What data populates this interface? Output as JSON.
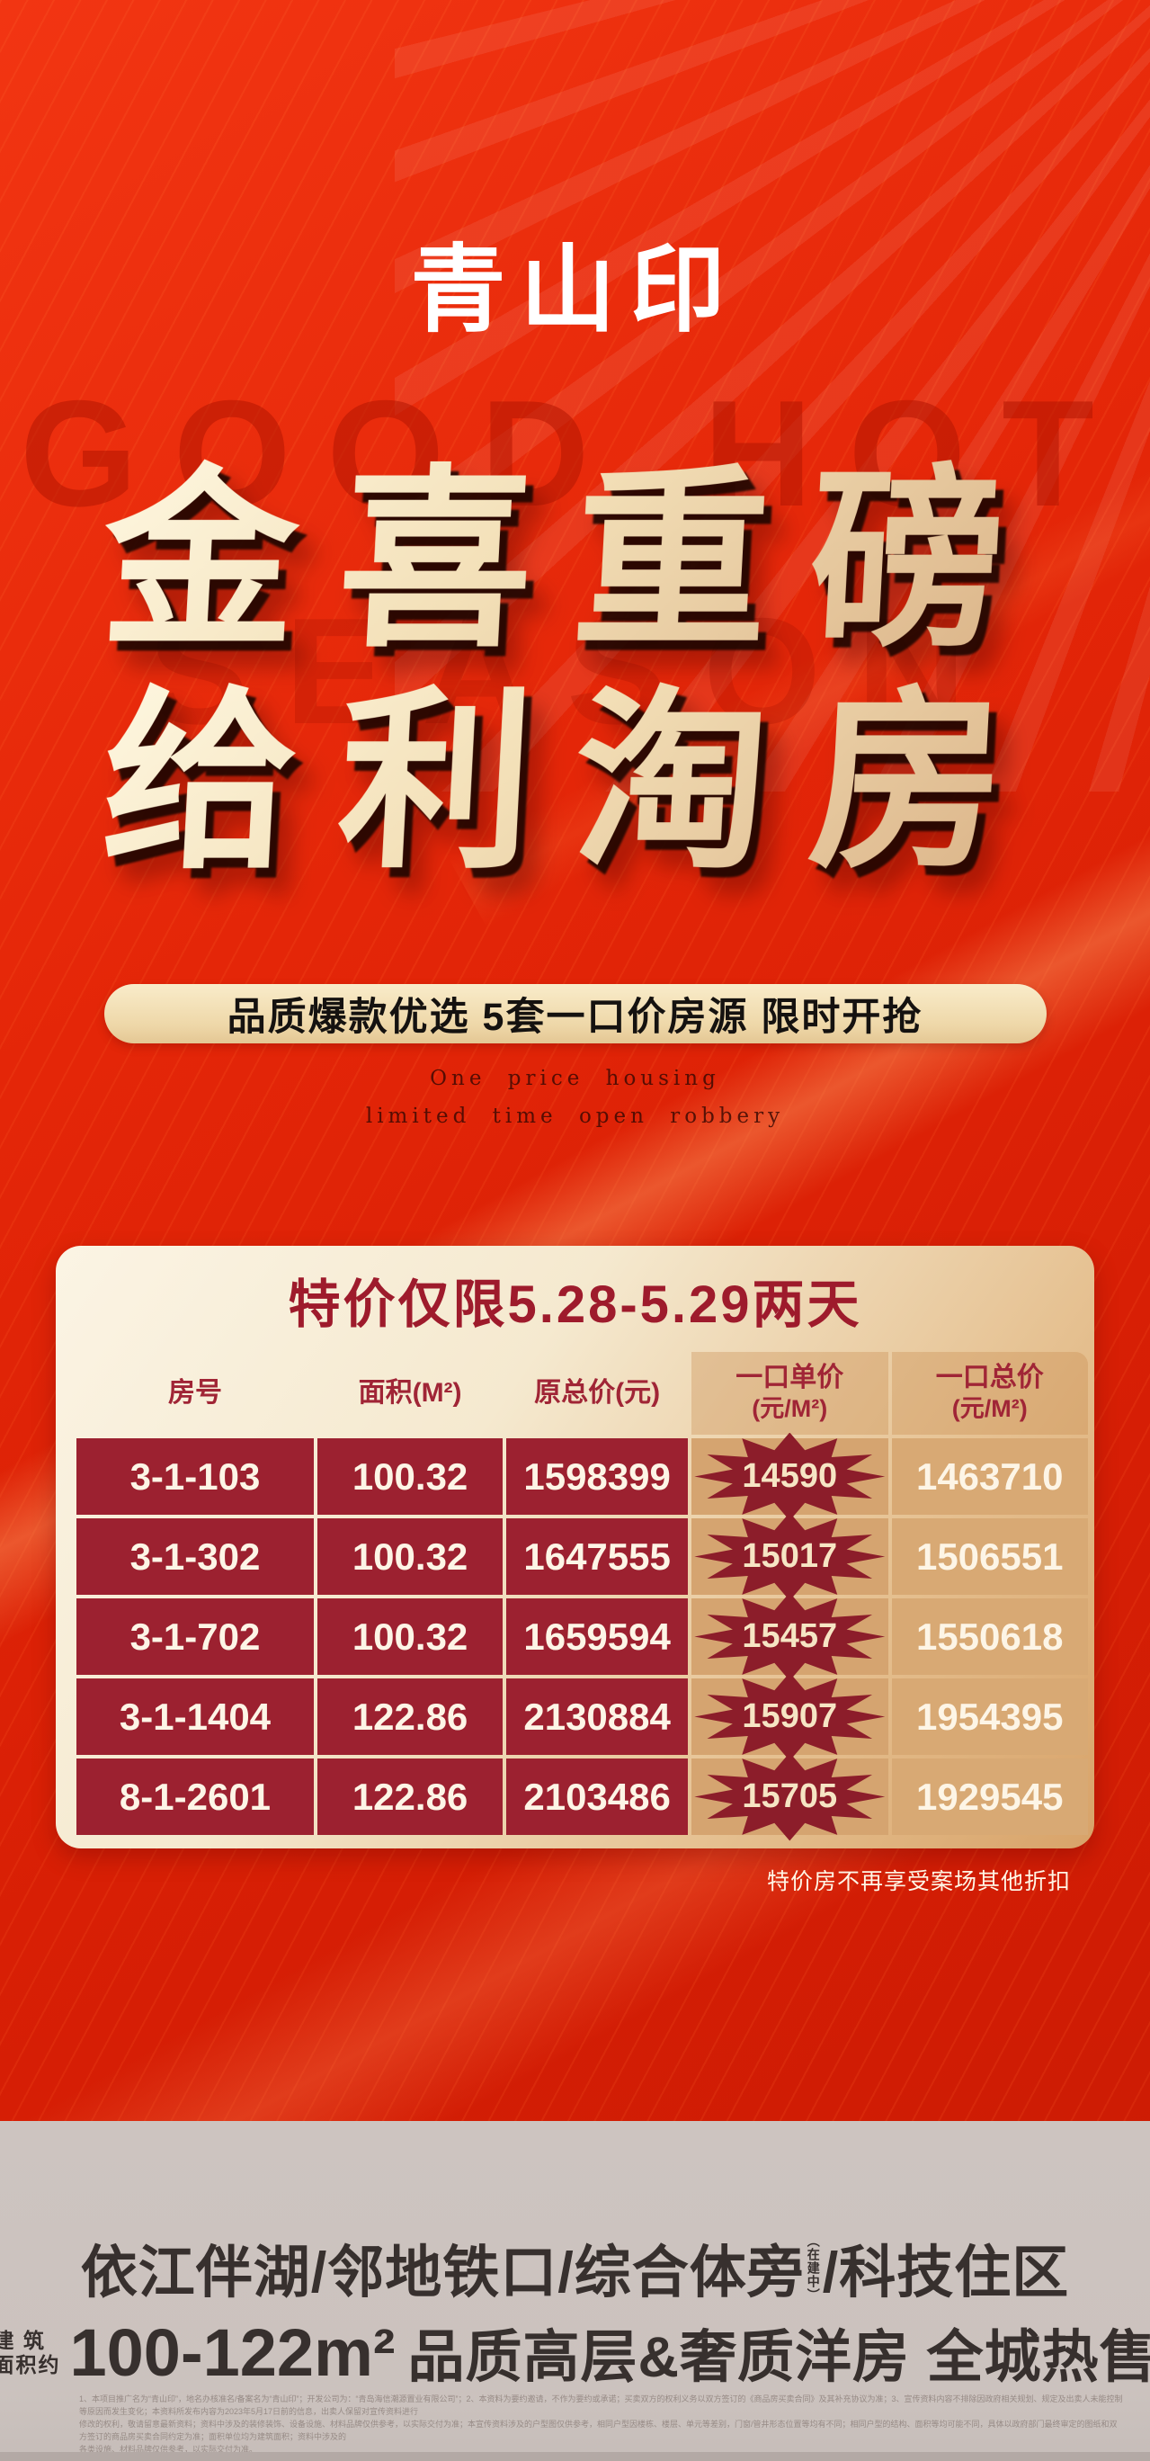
{
  "brand": {
    "title": "青山印"
  },
  "hero": {
    "ghost_top": "GOOD HOT",
    "ghost_bottom": "SEASON",
    "line1": "金喜重磅",
    "line2": "给利淘房",
    "banner": "品质爆款优选 5套一口价房源 限时开抢",
    "english_line1": "One  price housing",
    "english_line2": "limited time open robbery"
  },
  "offer_card": {
    "header": "特价仅限5.28-5.29两天",
    "table": {
      "col_room": "房号",
      "col_area": "面积(M²)",
      "col_orig_total": "原总价(元)",
      "col_unit_price": "一口单价",
      "col_unit_price_sub": "(元/M²)",
      "col_total_price": "一口总价",
      "col_total_price_sub": "(元/M²)",
      "rows": [
        {
          "room": "3-1-103",
          "area": "100.32",
          "orig": "1598399",
          "unit": "14590",
          "total": "1463710"
        },
        {
          "room": "3-1-302",
          "area": "100.32",
          "orig": "1647555",
          "unit": "15017",
          "total": "1506551"
        },
        {
          "room": "3-1-702",
          "area": "100.32",
          "orig": "1659594",
          "unit": "15457",
          "total": "1550618"
        },
        {
          "room": "3-1-1404",
          "area": "122.86",
          "orig": "2130884",
          "unit": "15907",
          "total": "1954395"
        },
        {
          "room": "8-1-2601",
          "area": "122.86",
          "orig": "2103486",
          "unit": "15705",
          "total": "1929545"
        }
      ]
    },
    "footnote": "特价房不再享受案场其他折扣"
  },
  "footer": {
    "headline1_pre": "依江伴湖/邻地铁口/综合体旁",
    "headline1_stack": "（在建中）",
    "headline1_post": "/科技住区",
    "area_label_line1": "建 筑",
    "area_label_line2": "面积约",
    "area_value": "100-122m²",
    "headline2_rest": "品质高层&奢质洋房 全城热售",
    "disclaimer_line1": "1、本项目推广名为“青山印”，地名办核准名/备案名为“青山印”；开发公司为：“青岛海信潮源置业有限公司”；2、本资料为要约邀请，不作为要约或承诺；买卖双方的权利义务以双方签订的《商品房买卖合同》及其补充协议为准；3、宣传资料内容不排除因政府相关规划、规定及出卖人未能控制等原因而发生变化；本资料所发布内容为2023年5月17日前的信息，出卖人保留对宣传资料进行",
    "disclaimer_line2": "修改的权利，敬请留意最新资料；资料中涉及的装修装饰、设备设施、材料品牌仅供参考，以实际交付为准；本宣传资料涉及的户型图仅供参考，相同户型因楼栋、楼层、单元等差别，门窗/管井形态位置等均有不同；相同户型的结构、面积等均可能不同，具体以政府部门最终审定的图纸和双方签订的商品房买卖合同约定为准；面积单位均为建筑面积；资料中涉及的",
    "disclaimer_line3": "各类设施、材料品牌仅供参考，以实际交付为准。"
  },
  "colors": {
    "background_red": "#e02408",
    "table_red": "#9c2130",
    "table_tan": "#d5a470",
    "badge_red": "#8c1d2a",
    "card_cream": "#f7edd8"
  }
}
